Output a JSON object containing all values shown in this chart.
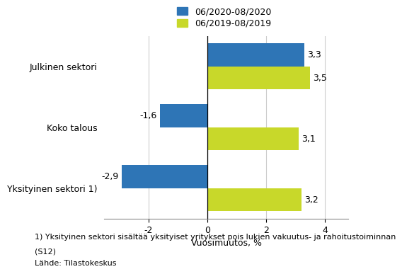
{
  "categories": [
    "Julkinen sektori",
    "Koko talous",
    "Yksityinen sektori 1)"
  ],
  "series": [
    {
      "label": "06/2020-08/2020",
      "color": "#2E75B6",
      "values": [
        3.3,
        -1.6,
        -2.9
      ]
    },
    {
      "label": "06/2019-08/2019",
      "color": "#C8D82A",
      "values": [
        3.5,
        3.1,
        3.2
      ]
    }
  ],
  "xlim": [
    -3.5,
    4.8
  ],
  "xticks": [
    -2,
    0,
    2,
    4
  ],
  "xlabel": "Vuosimuutos, %",
  "footnote1": "1) Yksityinen sektori sisältää yksityiset yritykset pois lukien vakuutus- ja rahoitustoiminnan",
  "footnote2": "(S12)",
  "footnote3": "Lähde: Tilastokeskus",
  "bar_height": 0.38,
  "bg_color": "#FFFFFF",
  "grid_color": "#CCCCCC",
  "font_size_labels": 9,
  "font_size_ticks": 9,
  "font_size_legend": 9,
  "font_size_footnote": 8,
  "font_size_xlabel": 9
}
